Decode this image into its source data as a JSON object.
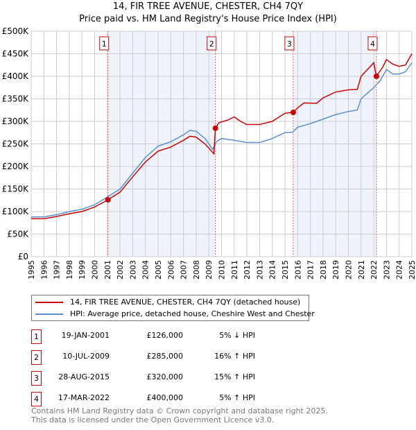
{
  "title": "14, FIR TREE AVENUE, CHESTER, CH4 7QY",
  "subtitle": "Price paid vs. HM Land Registry's House Price Index (HPI)",
  "chart_data": {
    "type": "line",
    "title": "14, FIR TREE AVENUE, CHESTER, CH4 7QY",
    "xlim": [
      1995,
      2025
    ],
    "ylim": [
      0,
      500000
    ],
    "x_ticks": [
      "1995",
      "1996",
      "1997",
      "1998",
      "1999",
      "2000",
      "2001",
      "2002",
      "2003",
      "2004",
      "2005",
      "2006",
      "2007",
      "2008",
      "2009",
      "2010",
      "2011",
      "2012",
      "2013",
      "2014",
      "2015",
      "2016",
      "2017",
      "2018",
      "2019",
      "2020",
      "2021",
      "2022",
      "2023",
      "2024",
      "2025"
    ],
    "y_ticks": [
      {
        "v": 0,
        "label": "£0"
      },
      {
        "v": 50000,
        "label": "£50K"
      },
      {
        "v": 100000,
        "label": "£100K"
      },
      {
        "v": 150000,
        "label": "£150K"
      },
      {
        "v": 200000,
        "label": "£200K"
      },
      {
        "v": 250000,
        "label": "£250K"
      },
      {
        "v": 300000,
        "label": "£300K"
      },
      {
        "v": 350000,
        "label": "£350K"
      },
      {
        "v": 400000,
        "label": "£400K"
      },
      {
        "v": 450000,
        "label": "£450K"
      },
      {
        "v": 500000,
        "label": "£500K"
      }
    ],
    "grid": true,
    "shaded_ranges": [
      [
        2001.05,
        2009.52
      ],
      [
        2015.65,
        2022.21
      ]
    ],
    "series": [
      {
        "name": "14, FIR TREE AVENUE, CHESTER, CH4 7QY (detached house)",
        "color": "#cc0000",
        "x": [
          1995,
          1996,
          1997,
          1998,
          1999,
          2000,
          2001.05,
          2002,
          2003,
          2004,
          2005,
          2006,
          2007,
          2007.5,
          2008,
          2008.7,
          2009.4,
          2009.52,
          2009.8,
          2010.5,
          2011,
          2011.5,
          2012,
          2013,
          2014,
          2015,
          2015.65,
          2016,
          2016.5,
          2017.5,
          2018,
          2019,
          2020,
          2020.7,
          2021,
          2022,
          2022.2,
          2022.7,
          2023,
          2023.5,
          2024,
          2024.5,
          2025
        ],
        "y": [
          84000,
          84000,
          89000,
          95000,
          100000,
          110000,
          126000,
          143000,
          177000,
          210000,
          234000,
          243000,
          258000,
          267000,
          265000,
          250000,
          228000,
          285000,
          297000,
          303000,
          310000,
          300000,
          293000,
          293000,
          300000,
          318000,
          320000,
          330000,
          341000,
          340000,
          352000,
          365000,
          370000,
          371000,
          400000,
          430000,
          400000,
          420000,
          437000,
          427000,
          422000,
          425000,
          450000
        ]
      },
      {
        "name": "HPI: Average price, detached house, Cheshire West and Chester",
        "color": "#5b8fd4",
        "x": [
          1995,
          1996,
          1997,
          1998,
          1999,
          2000,
          2001,
          2002,
          2003,
          2004,
          2005,
          2006,
          2007,
          2007.5,
          2008,
          2008.7,
          2009.3,
          2009.6,
          2010,
          2011,
          2012,
          2013,
          2014,
          2015,
          2015.6,
          2016,
          2017,
          2018,
          2019,
          2020,
          2020.7,
          2021,
          2022,
          2022.5,
          2023,
          2023.5,
          2024,
          2024.5,
          2025
        ],
        "y": [
          88000,
          88000,
          93000,
          100000,
          105000,
          115000,
          132000,
          150000,
          185000,
          220000,
          245000,
          255000,
          270000,
          280000,
          278000,
          262000,
          238000,
          255000,
          262000,
          258000,
          253000,
          253000,
          262000,
          275000,
          276000,
          287000,
          295000,
          305000,
          315000,
          322000,
          325000,
          350000,
          375000,
          390000,
          415000,
          405000,
          405000,
          410000,
          430000
        ]
      }
    ],
    "sales": [
      {
        "n": "1",
        "date": "19-JAN-2001",
        "x": 2001.05,
        "price": 126000,
        "price_label": "£126,000",
        "hpi": "5% ↓ HPI"
      },
      {
        "n": "2",
        "date": "10-JUL-2009",
        "x": 2009.52,
        "price": 285000,
        "price_label": "£285,000",
        "hpi": "16% ↑ HPI"
      },
      {
        "n": "3",
        "date": "28-AUG-2015",
        "x": 2015.65,
        "price": 320000,
        "price_label": "£320,000",
        "hpi": "15% ↑ HPI"
      },
      {
        "n": "4",
        "date": "17-MAR-2022",
        "x": 2022.21,
        "price": 400000,
        "price_label": "£400,000",
        "hpi": "5% ↑ HPI"
      }
    ]
  },
  "footer": [
    "Contains HM Land Registry data © Crown copyright and database right 2025.",
    "This data is licensed under the Open Government Licence v3.0."
  ]
}
